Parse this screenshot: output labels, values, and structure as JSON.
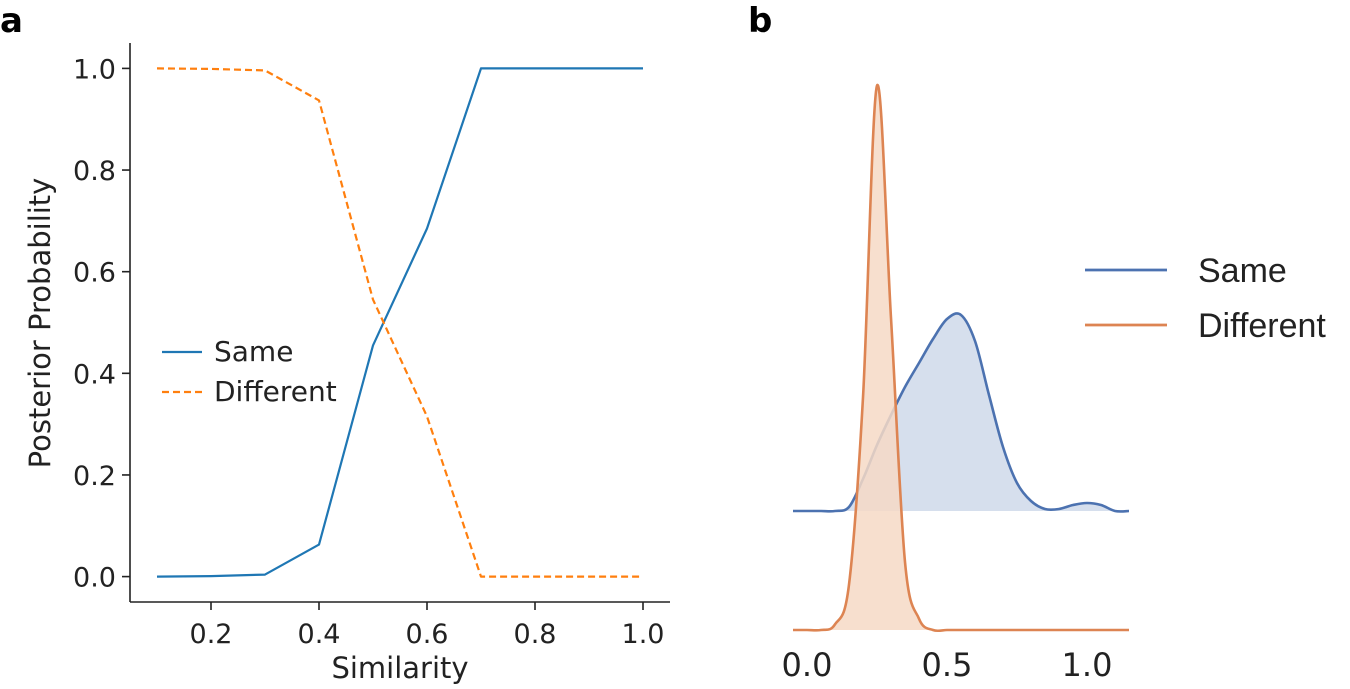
{
  "panels": {
    "a": {
      "letter": "a"
    },
    "b": {
      "letter": "b"
    }
  },
  "colors": {
    "same_a": "#1f77b4",
    "different_a": "#ff7f0e",
    "same_b": "#4c72b0",
    "same_b_fill": "#cfd9ea",
    "different_b": "#dd8452",
    "different_b_fill": "#f6d9c5"
  },
  "chart_data": [
    {
      "type": "line",
      "panel": "a",
      "xlabel": "Similarity",
      "ylabel": "Posterior Probability",
      "xlim": [
        0.05,
        1.05
      ],
      "ylim": [
        -0.05,
        1.05
      ],
      "xticks": [
        0.2,
        0.4,
        0.6,
        0.8,
        1.0
      ],
      "xtick_labels": [
        "0.2",
        "0.4",
        "0.6",
        "0.8",
        "1.0"
      ],
      "yticks": [
        0.0,
        0.2,
        0.4,
        0.6,
        0.8,
        1.0
      ],
      "ytick_labels": [
        "0.0",
        "0.2",
        "0.4",
        "0.6",
        "0.8",
        "1.0"
      ],
      "x": [
        0.1,
        0.2,
        0.3,
        0.4,
        0.5,
        0.6,
        0.7,
        0.8,
        0.9,
        1.0
      ],
      "series": [
        {
          "name": "Same",
          "style": "solid",
          "values": [
            0.0,
            0.001,
            0.004,
            0.063,
            0.455,
            0.685,
            1.0,
            1.0,
            1.0,
            1.0
          ]
        },
        {
          "name": "Different",
          "style": "dashed",
          "values": [
            1.0,
            0.999,
            0.996,
            0.937,
            0.545,
            0.315,
            0.0,
            0.0,
            0.0,
            0.0
          ]
        }
      ],
      "legend": "center-left",
      "grid": false
    },
    {
      "type": "area",
      "panel": "b",
      "xticks": [
        0.0,
        0.5,
        1.0
      ],
      "xtick_labels": [
        "0.0",
        "0.5",
        "1.0"
      ],
      "x": [
        -0.05,
        0.0,
        0.05,
        0.1,
        0.15,
        0.2,
        0.25,
        0.3,
        0.35,
        0.4,
        0.45,
        0.5,
        0.55,
        0.6,
        0.65,
        0.7,
        0.75,
        0.8,
        0.85,
        0.9,
        0.95,
        1.0,
        1.05,
        1.1,
        1.15
      ],
      "series": [
        {
          "name": "Same",
          "ridge": "upper",
          "density": [
            0.0,
            0.0,
            0.0,
            0.0,
            0.02,
            0.16,
            0.33,
            0.48,
            0.62,
            0.74,
            0.86,
            0.96,
            0.98,
            0.85,
            0.58,
            0.32,
            0.14,
            0.05,
            0.01,
            0.01,
            0.03,
            0.04,
            0.03,
            0.0,
            0.0
          ]
        },
        {
          "name": "Different",
          "ridge": "lower",
          "density": [
            0.0,
            0.0,
            0.0,
            0.01,
            0.08,
            0.41,
            0.96,
            0.55,
            0.12,
            0.02,
            0.0,
            0.0,
            0.0,
            0.0,
            0.0,
            0.0,
            0.0,
            0.0,
            0.0,
            0.0,
            0.0,
            0.0,
            0.0,
            0.0,
            0.0
          ]
        }
      ],
      "legend": "right",
      "grid": false
    }
  ]
}
